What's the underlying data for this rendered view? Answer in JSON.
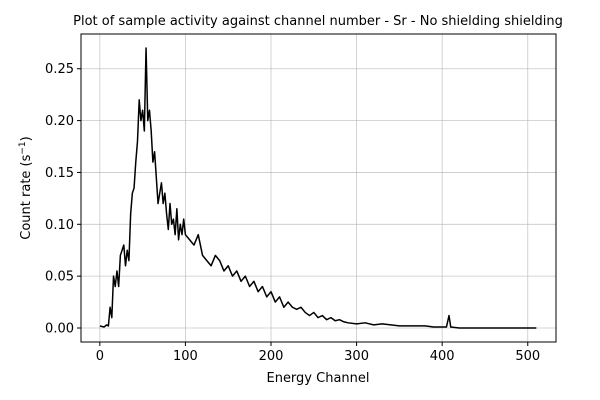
{
  "chart_data": {
    "type": "line",
    "title": "Plot of sample activity against channel number - Sr - No shielding shielding",
    "xlabel": "Energy Channel",
    "ylabel": "Count rate (s",
    "ylabel_sup": "−1",
    "ylabel_tail": ")",
    "xlim": [
      -22,
      533
    ],
    "ylim": [
      -0.0135,
      0.2835
    ],
    "xticks": [
      0,
      100,
      200,
      300,
      400,
      500
    ],
    "xtick_labels": [
      "0",
      "100",
      "200",
      "300",
      "400",
      "500"
    ],
    "yticks": [
      0.0,
      0.05,
      0.1,
      0.15,
      0.2,
      0.25
    ],
    "ytick_labels": [
      "0.00",
      "0.05",
      "0.10",
      "0.15",
      "0.20",
      "0.25"
    ],
    "grid": true,
    "legend": "none",
    "series_color": "#000000",
    "series": [
      {
        "x": [
          0,
          5,
          8,
          10,
          12,
          14,
          16,
          18,
          20,
          22,
          24,
          26,
          28,
          30,
          32,
          34,
          36,
          38,
          40,
          42,
          44,
          46,
          48,
          50,
          52,
          54,
          56,
          58,
          60,
          62,
          64,
          66,
          68,
          70,
          72,
          74,
          76,
          78,
          80,
          82,
          84,
          86,
          88,
          90,
          92,
          94,
          96,
          98,
          100,
          105,
          110,
          115,
          120,
          125,
          130,
          135,
          140,
          145,
          150,
          155,
          160,
          165,
          170,
          175,
          180,
          185,
          190,
          195,
          200,
          205,
          210,
          215,
          220,
          225,
          230,
          235,
          240,
          245,
          250,
          255,
          260,
          265,
          270,
          275,
          280,
          285,
          290,
          300,
          310,
          320,
          330,
          340,
          350,
          360,
          370,
          380,
          390,
          400,
          405,
          408,
          410,
          420,
          450,
          480,
          510
        ],
        "y": [
          0.002,
          0.001,
          0.003,
          0.002,
          0.02,
          0.01,
          0.05,
          0.04,
          0.055,
          0.04,
          0.07,
          0.075,
          0.08,
          0.06,
          0.075,
          0.065,
          0.11,
          0.13,
          0.135,
          0.16,
          0.18,
          0.22,
          0.2,
          0.21,
          0.19,
          0.27,
          0.2,
          0.21,
          0.19,
          0.16,
          0.17,
          0.145,
          0.12,
          0.13,
          0.14,
          0.12,
          0.13,
          0.11,
          0.095,
          0.12,
          0.1,
          0.105,
          0.09,
          0.115,
          0.085,
          0.1,
          0.09,
          0.105,
          0.09,
          0.085,
          0.08,
          0.09,
          0.07,
          0.065,
          0.06,
          0.07,
          0.065,
          0.055,
          0.06,
          0.05,
          0.055,
          0.045,
          0.05,
          0.04,
          0.045,
          0.035,
          0.04,
          0.03,
          0.035,
          0.025,
          0.03,
          0.02,
          0.025,
          0.02,
          0.018,
          0.02,
          0.015,
          0.012,
          0.015,
          0.01,
          0.012,
          0.008,
          0.01,
          0.007,
          0.008,
          0.006,
          0.005,
          0.004,
          0.005,
          0.003,
          0.004,
          0.003,
          0.002,
          0.002,
          0.002,
          0.002,
          0.001,
          0.001,
          0.001,
          0.012,
          0.001,
          0.0,
          0.0,
          0.0,
          0.0
        ]
      }
    ]
  }
}
